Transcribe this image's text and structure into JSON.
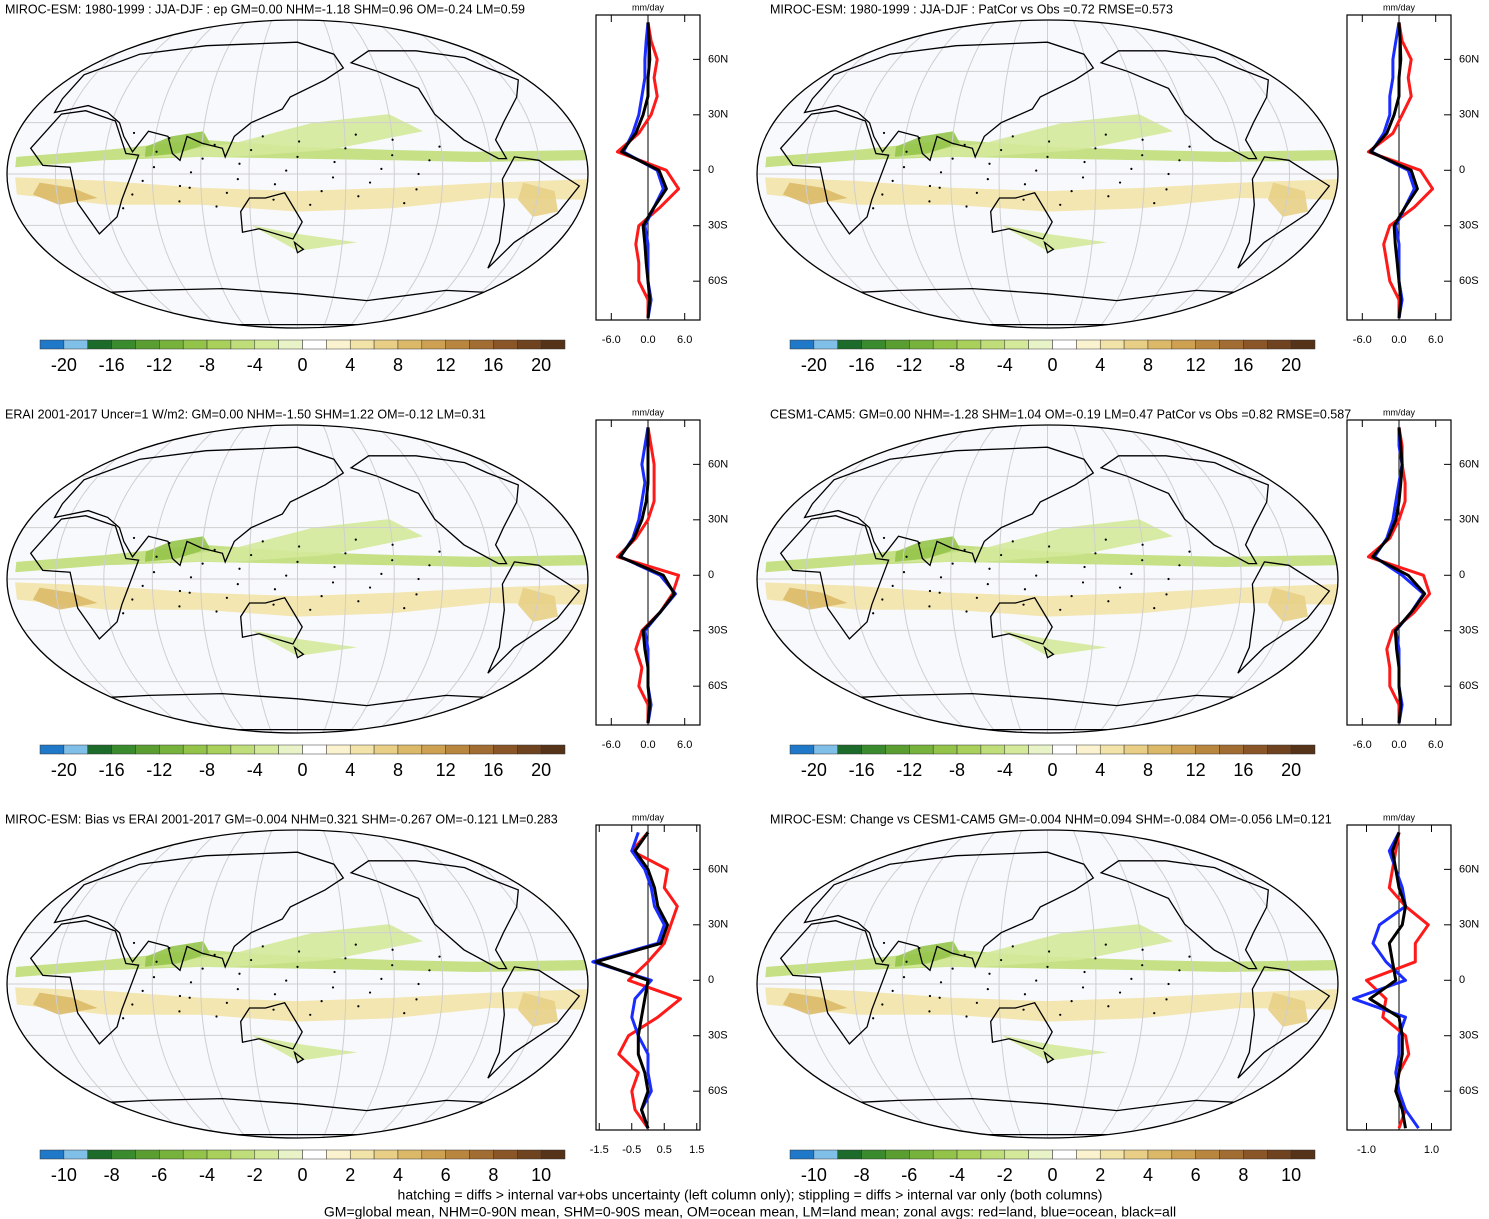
{
  "chart_data": [
    {
      "type": "map",
      "title": "MIROC-ESM: 1980-1999 : JJA-DJF : ep GM=0.00 NHM=-1.18 SHM=0.96 OM=-0.24 LM=0.59",
      "colorbar": {
        "colors": [
          "#1f78c8",
          "#7fbfe8",
          "#1d6b2a",
          "#3a8a2e",
          "#5a9e32",
          "#77b33c",
          "#93c449",
          "#a8d05a",
          "#bfdd78",
          "#d4e99a",
          "#e8f4c8",
          "#ffffff",
          "#fbf3cf",
          "#f2e3a8",
          "#e8cf85",
          "#dbb968",
          "#cda052",
          "#b98640",
          "#a26d33",
          "#8a5628",
          "#6f4220",
          "#553318"
        ],
        "lim": [
          -22,
          22
        ],
        "ticks": [
          -20,
          -16,
          -12,
          -8,
          -4,
          0,
          4,
          8,
          12,
          16,
          20
        ]
      },
      "profile": {
        "type": "line",
        "unit": "mm/day",
        "y": [
          -80,
          -70,
          -60,
          -50,
          -40,
          -30,
          -20,
          -10,
          0,
          10,
          20,
          30,
          40,
          50,
          60,
          70,
          80
        ],
        "xlim": [
          -8.5,
          8.5
        ],
        "xticks": [
          {
            "value": -6,
            "label": "-6.0"
          },
          {
            "value": 0,
            "label": "0.0"
          },
          {
            "value": 6,
            "label": "6.0"
          }
        ],
        "ylim": [
          -81,
          84
        ],
        "yticks": [
          {
            "value": 60,
            "label": "60N"
          },
          {
            "value": 30,
            "label": "30N"
          },
          0,
          {
            "value": -30,
            "label": "30S"
          },
          {
            "value": -60,
            "label": "60S"
          }
        ],
        "series": [
          {
            "color": "#ff1a1a",
            "values": [
              0,
              0,
              -1.5,
              -1.5,
              -2,
              -1.5,
              2,
              5,
              3,
              -5,
              -1.5,
              0.5,
              1.5,
              1,
              1.5,
              0.5,
              0
            ]
          },
          {
            "color": "#1a2cff",
            "values": [
              0,
              0.5,
              0,
              0,
              0,
              -0.5,
              1,
              2.5,
              1.5,
              -4,
              -2.5,
              -1.5,
              -1,
              -0.5,
              -0.5,
              -0.3,
              0
            ]
          },
          {
            "color": "#000000",
            "values": [
              0,
              0.3,
              0,
              -0.3,
              -0.5,
              -0.8,
              1,
              3,
              1.8,
              -4.3,
              -2,
              -0.8,
              0,
              0,
              0.3,
              0.2,
              0
            ]
          }
        ]
      }
    },
    {
      "type": "map",
      "title": "MIROC-ESM: 1980-1999 : JJA-DJF : PatCor vs Obs =0.72 RMSE=0.573",
      "colorbar": {
        "colors": [
          "#1f78c8",
          "#7fbfe8",
          "#1d6b2a",
          "#3a8a2e",
          "#5a9e32",
          "#77b33c",
          "#93c449",
          "#a8d05a",
          "#bfdd78",
          "#d4e99a",
          "#e8f4c8",
          "#ffffff",
          "#fbf3cf",
          "#f2e3a8",
          "#e8cf85",
          "#dbb968",
          "#cda052",
          "#b98640",
          "#a26d33",
          "#8a5628",
          "#6f4220",
          "#553318"
        ],
        "lim": [
          -22,
          22
        ],
        "ticks": [
          -20,
          -16,
          -12,
          -8,
          -4,
          0,
          4,
          8,
          12,
          16,
          20
        ]
      },
      "profile": {
        "type": "line",
        "unit": "mm/day",
        "y": [
          -80,
          -70,
          -60,
          -50,
          -40,
          -30,
          -20,
          -10,
          0,
          10,
          20,
          30,
          40,
          50,
          60,
          70,
          80
        ],
        "xlim": [
          -8.5,
          8.5
        ],
        "xticks": [
          {
            "value": -6,
            "label": "-6.0"
          },
          {
            "value": 0,
            "label": "0.0"
          },
          {
            "value": 6,
            "label": "6.0"
          }
        ],
        "ylim": [
          -81,
          84
        ],
        "yticks": [
          {
            "value": 60,
            "label": "60N"
          },
          {
            "value": 30,
            "label": "30N"
          },
          0,
          {
            "value": -30,
            "label": "30S"
          },
          {
            "value": -60,
            "label": "60S"
          }
        ],
        "series": [
          {
            "color": "#ff1a1a",
            "values": [
              0,
              0,
              -1.5,
              -2,
              -2.5,
              -1.5,
              2.5,
              5.5,
              3.5,
              -5,
              -1,
              0.5,
              2,
              1.5,
              2,
              0.5,
              0
            ]
          },
          {
            "color": "#1a2cff",
            "values": [
              0,
              0.5,
              0,
              0,
              0,
              -0.5,
              1,
              2.5,
              1.5,
              -4.5,
              -2.5,
              -1.5,
              -1.5,
              -1,
              -1,
              -0.5,
              0
            ]
          },
          {
            "color": "#000000",
            "values": [
              0,
              0.3,
              0,
              -0.3,
              -0.6,
              -0.8,
              1,
              3,
              2,
              -4.7,
              -2,
              -0.8,
              0,
              0,
              0.3,
              0.2,
              0
            ]
          }
        ]
      }
    },
    {
      "type": "map",
      "title": "ERAI 2001-2017 Uncer=1 W/m2: GM=0.00 NHM=-1.50 SHM=1.22 OM=-0.12 LM=0.31",
      "colorbar": {
        "colors": [
          "#1f78c8",
          "#7fbfe8",
          "#1d6b2a",
          "#3a8a2e",
          "#5a9e32",
          "#77b33c",
          "#93c449",
          "#a8d05a",
          "#bfdd78",
          "#d4e99a",
          "#e8f4c8",
          "#ffffff",
          "#fbf3cf",
          "#f2e3a8",
          "#e8cf85",
          "#dbb968",
          "#cda052",
          "#b98640",
          "#a26d33",
          "#8a5628",
          "#6f4220",
          "#553318"
        ],
        "lim": [
          -22,
          22
        ],
        "ticks": [
          -20,
          -16,
          -12,
          -8,
          -4,
          0,
          4,
          8,
          12,
          16,
          20
        ]
      },
      "profile": {
        "type": "line",
        "unit": "mm/day",
        "y": [
          -80,
          -70,
          -60,
          -50,
          -40,
          -30,
          -20,
          -10,
          0,
          10,
          20,
          30,
          40,
          50,
          60,
          70,
          80
        ],
        "xlim": [
          -8.5,
          8.5
        ],
        "xticks": [
          {
            "value": -6,
            "label": "-6.0"
          },
          {
            "value": 0,
            "label": "0.0"
          },
          {
            "value": 6,
            "label": "6.0"
          }
        ],
        "ylim": [
          -81,
          84
        ],
        "yticks": [
          {
            "value": 60,
            "label": "60N"
          },
          {
            "value": 30,
            "label": "30N"
          },
          0,
          {
            "value": -30,
            "label": "30S"
          },
          {
            "value": -60,
            "label": "60S"
          }
        ],
        "series": [
          {
            "color": "#ff1a1a",
            "values": [
              0,
              0,
              -1.5,
              -1,
              -2,
              -1,
              2,
              4,
              5,
              -5,
              -2,
              0,
              1,
              1,
              1,
              0.5,
              0
            ]
          },
          {
            "color": "#1a2cff",
            "values": [
              0,
              0.5,
              0,
              0,
              0,
              -0.5,
              2,
              4.5,
              2,
              -4.5,
              -2.5,
              -1.5,
              -1,
              -0.5,
              -1,
              -0.5,
              0
            ]
          },
          {
            "color": "#000000",
            "values": [
              0,
              0.3,
              0,
              0,
              -0.5,
              -0.8,
              2,
              4.3,
              2.5,
              -4.6,
              -2.3,
              -1,
              -0.3,
              0,
              0,
              0,
              0
            ]
          }
        ]
      }
    },
    {
      "type": "map",
      "title": "CESM1-CAM5: GM=0.00 NHM=-1.28 SHM=1.04 OM=-0.19 LM=0.47 PatCor vs Obs =0.82 RMSE=0.587",
      "colorbar": {
        "colors": [
          "#1f78c8",
          "#7fbfe8",
          "#1d6b2a",
          "#3a8a2e",
          "#5a9e32",
          "#77b33c",
          "#93c449",
          "#a8d05a",
          "#bfdd78",
          "#d4e99a",
          "#e8f4c8",
          "#ffffff",
          "#fbf3cf",
          "#f2e3a8",
          "#e8cf85",
          "#dbb968",
          "#cda052",
          "#b98640",
          "#a26d33",
          "#8a5628",
          "#6f4220",
          "#553318"
        ],
        "lim": [
          -22,
          22
        ],
        "ticks": [
          -20,
          -16,
          -12,
          -8,
          -4,
          0,
          4,
          8,
          12,
          16,
          20
        ]
      },
      "profile": {
        "type": "line",
        "unit": "mm/day",
        "y": [
          -80,
          -70,
          -60,
          -50,
          -40,
          -30,
          -20,
          -10,
          0,
          10,
          20,
          30,
          40,
          50,
          60,
          70,
          80
        ],
        "xlim": [
          -8.5,
          8.5
        ],
        "xticks": [
          {
            "value": -6,
            "label": "-6.0"
          },
          {
            "value": 0,
            "label": "0.0"
          },
          {
            "value": 6,
            "label": "6.0"
          }
        ],
        "ylim": [
          -81,
          84
        ],
        "yticks": [
          {
            "value": 60,
            "label": "60N"
          },
          {
            "value": 30,
            "label": "30N"
          },
          0,
          {
            "value": -30,
            "label": "30S"
          },
          {
            "value": -60,
            "label": "60S"
          }
        ],
        "series": [
          {
            "color": "#ff1a1a",
            "values": [
              0,
              0,
              -1.5,
              -1.5,
              -2,
              -1,
              2.5,
              5,
              4,
              -5,
              -1.5,
              0,
              1,
              1,
              0.5,
              0.5,
              0
            ]
          },
          {
            "color": "#1a2cff",
            "values": [
              0,
              0.5,
              0,
              0,
              0,
              -0.5,
              2,
              4,
              0.5,
              -4,
              -2,
              -1,
              -0.5,
              0,
              0.5,
              0,
              0
            ]
          },
          {
            "color": "#000000",
            "values": [
              0,
              0.3,
              0,
              0,
              -0.4,
              -0.6,
              2,
              4.2,
              1.5,
              -4.3,
              -1.8,
              -0.5,
              0,
              0.3,
              0.5,
              0.3,
              0
            ]
          }
        ]
      }
    },
    {
      "type": "map",
      "title": "MIROC-ESM: Bias vs ERAI 2001-2017 GM=-0.004 NHM=0.321 SHM=-0.267 OM=-0.121 LM=0.283",
      "colorbar": {
        "colors": [
          "#1f78c8",
          "#7fbfe8",
          "#1d6b2a",
          "#3a8a2e",
          "#5a9e32",
          "#77b33c",
          "#93c449",
          "#a8d05a",
          "#bfdd78",
          "#d4e99a",
          "#e8f4c8",
          "#ffffff",
          "#fbf3cf",
          "#f2e3a8",
          "#e8cf85",
          "#dbb968",
          "#cda052",
          "#b98640",
          "#a26d33",
          "#8a5628",
          "#6f4220",
          "#553318"
        ],
        "lim": [
          -11,
          11
        ],
        "ticks": [
          -10,
          -8,
          -6,
          -4,
          -2,
          0,
          2,
          4,
          6,
          8,
          10
        ]
      },
      "profile": {
        "type": "line",
        "unit": "mm/day",
        "y": [
          -80,
          -70,
          -60,
          -50,
          -40,
          -30,
          -20,
          -10,
          0,
          10,
          20,
          30,
          40,
          50,
          60,
          70,
          80
        ],
        "xlim": [
          -1.6,
          1.6
        ],
        "xticks": [
          -1.5,
          -0.5,
          0.5,
          1.5
        ],
        "ylim": [
          -81,
          84
        ],
        "yticks": [
          {
            "value": 60,
            "label": "60N"
          },
          {
            "value": 30,
            "label": "30N"
          },
          0,
          {
            "value": -30,
            "label": "30S"
          },
          {
            "value": -60,
            "label": "60S"
          }
        ],
        "series": [
          {
            "color": "#ff1a1a",
            "values": [
              0,
              -0.4,
              -0.5,
              -0.3,
              -0.9,
              -0.6,
              0.3,
              1,
              -0.6,
              0,
              0.5,
              0.7,
              0.9,
              0.5,
              0.6,
              -0.5,
              0
            ]
          },
          {
            "color": "#1a2cff",
            "values": [
              0,
              -0.2,
              0.1,
              0,
              0,
              -0.3,
              -0.5,
              -0.4,
              0.1,
              -1.7,
              0.3,
              0.5,
              0.2,
              0.1,
              -0.1,
              -0.5,
              -0.3
            ]
          },
          {
            "color": "#000000",
            "values": [
              0,
              -0.2,
              0,
              -0.1,
              -0.3,
              -0.3,
              -0.2,
              -0.1,
              0,
              -1.6,
              0.4,
              0.6,
              0.3,
              0.2,
              0,
              -0.4,
              0
            ]
          }
        ]
      }
    },
    {
      "type": "map",
      "title": "MIROC-ESM: Change vs CESM1-CAM5 GM=-0.004 NHM=0.094 SHM=-0.084 OM=-0.056 LM=0.121",
      "colorbar": {
        "colors": [
          "#1f78c8",
          "#7fbfe8",
          "#1d6b2a",
          "#3a8a2e",
          "#5a9e32",
          "#77b33c",
          "#93c449",
          "#a8d05a",
          "#bfdd78",
          "#d4e99a",
          "#e8f4c8",
          "#ffffff",
          "#fbf3cf",
          "#f2e3a8",
          "#e8cf85",
          "#dbb968",
          "#cda052",
          "#b98640",
          "#a26d33",
          "#8a5628",
          "#6f4220",
          "#553318"
        ],
        "lim": [
          -11,
          11
        ],
        "ticks": [
          -10,
          -8,
          -6,
          -4,
          -2,
          0,
          2,
          4,
          6,
          8,
          10
        ]
      },
      "profile": {
        "type": "line",
        "unit": "mm/day",
        "y": [
          -80,
          -70,
          -60,
          -50,
          -40,
          -30,
          -20,
          -10,
          0,
          10,
          20,
          30,
          40,
          50,
          60,
          70,
          80
        ],
        "xlim": [
          -1.6,
          1.6
        ],
        "xticks": [
          {
            "value": -1,
            "label": "-1.0"
          },
          {
            "value": 1,
            "label": "1.0"
          }
        ],
        "ylim": [
          -81,
          84
        ],
        "yticks": [
          {
            "value": 60,
            "label": "60N"
          },
          {
            "value": 30,
            "label": "30N"
          },
          0,
          {
            "value": -30,
            "label": "30S"
          },
          {
            "value": -60,
            "label": "60S"
          }
        ],
        "series": [
          {
            "color": "#ff1a1a",
            "values": [
              0,
              0.2,
              -0.1,
              0,
              0.3,
              0.2,
              -0.5,
              -0.4,
              -1,
              0.5,
              0.5,
              0.9,
              0.2,
              -0.3,
              -0.2,
              -0.1,
              0
            ]
          },
          {
            "color": "#1a2cff",
            "values": [
              0.6,
              0.2,
              0,
              -0.1,
              0,
              0,
              0.2,
              -1.4,
              0.2,
              -0.4,
              -0.8,
              -0.6,
              0.2,
              0.1,
              -0.1,
              -0.3,
              0
            ]
          },
          {
            "color": "#000000",
            "values": [
              0.2,
              0.1,
              -0.1,
              0,
              0.1,
              0.1,
              0,
              -0.9,
              -0.1,
              -0.2,
              -0.3,
              0.1,
              0.2,
              0,
              -0.1,
              -0.2,
              0
            ]
          }
        ]
      }
    }
  ],
  "footer": [
    "hatching = diffs > internal var+obs uncertainty (left column only); stippling = diffs > internal var only (both columns)",
    "GM=global mean, NHM=0-90N mean, SHM=0-90S mean, OM=ocean mean, LM=land mean; zonal avgs: red=land, blue=ocean, black=all"
  ]
}
